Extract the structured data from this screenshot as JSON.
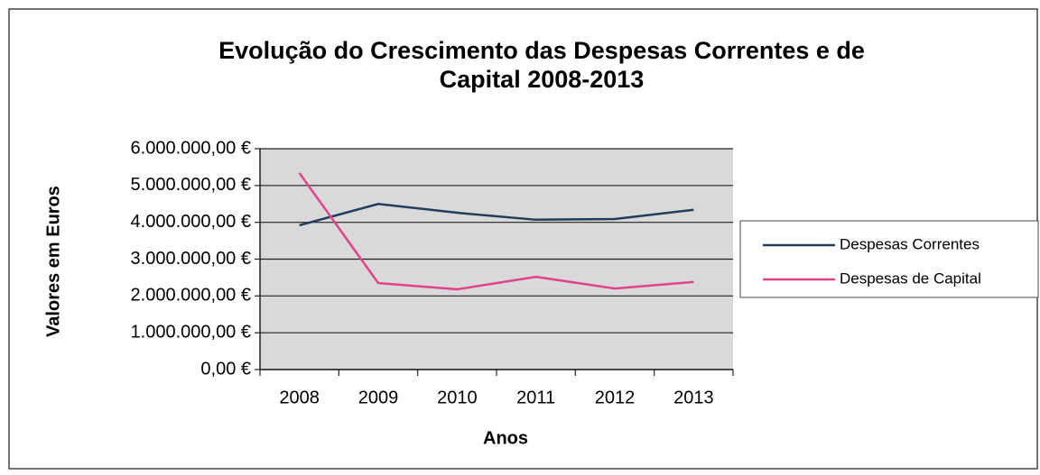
{
  "chart_data": {
    "type": "line",
    "title": "Evolução do Crescimento das Despesas Correntes e de\nCapital 2008-2013",
    "x_label": "Anos",
    "y_label": "Valores em Euros",
    "categories": [
      "2008",
      "2009",
      "2010",
      "2011",
      "2012",
      "2013"
    ],
    "series": [
      {
        "name": "Despesas Correntes",
        "color": "#1f3d5c",
        "values": [
          3920000,
          4500000,
          4260000,
          4070000,
          4090000,
          4340000
        ]
      },
      {
        "name": "Despesas de Capital",
        "color": "#e0428c",
        "values": [
          5340000,
          2350000,
          2180000,
          2520000,
          2200000,
          2380000
        ]
      }
    ],
    "ylim": [
      0,
      6000000
    ],
    "yticks": [
      {
        "value": 0,
        "label": "0,00 €"
      },
      {
        "value": 1000000,
        "label": "1.000.000,00 €"
      },
      {
        "value": 2000000,
        "label": "2.000.000,00 €"
      },
      {
        "value": 3000000,
        "label": "3.000.000,00 €"
      },
      {
        "value": 4000000,
        "label": "4.000.000,00 €"
      },
      {
        "value": 5000000,
        "label": "5.000.000,00 €"
      },
      {
        "value": 6000000,
        "label": "6.000.000,00 €"
      }
    ],
    "grid": true,
    "legend": "right"
  }
}
